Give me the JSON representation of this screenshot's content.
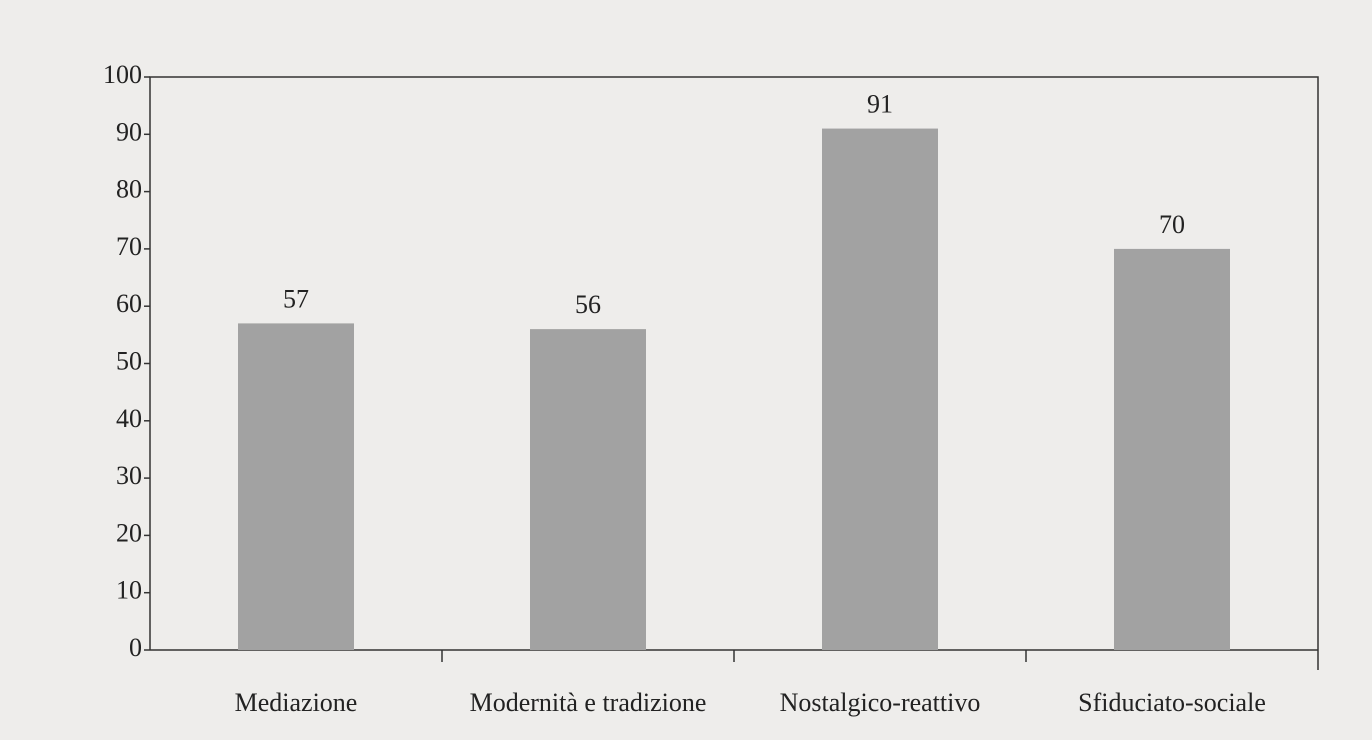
{
  "chart_data": {
    "type": "bar",
    "categories": [
      "Mediazione",
      "Modernità e tradizione",
      "Nostalgico-reattivo",
      "Sfiduciato-sociale"
    ],
    "values": [
      57,
      56,
      91,
      70
    ],
    "color": "#a2a2a2",
    "ylim": [
      0,
      100
    ],
    "yticks": [
      0,
      10,
      20,
      30,
      40,
      50,
      60,
      70,
      80,
      90,
      100
    ],
    "grid": false
  }
}
